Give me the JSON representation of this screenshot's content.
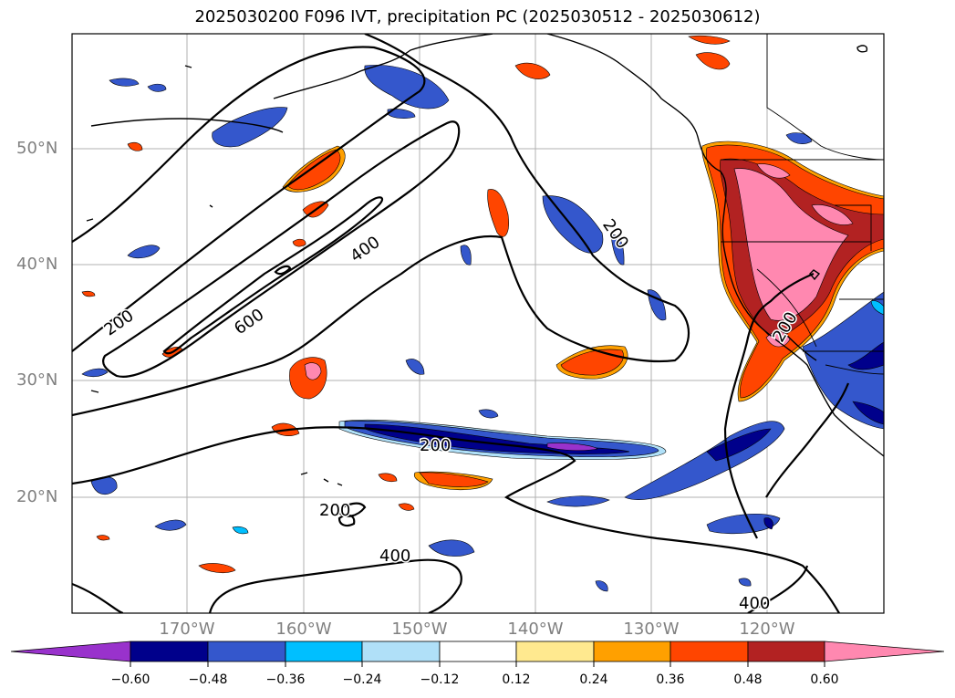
{
  "title": "2025030200 F096 IVT, precipitation PC (2025030512 - 2025030612)",
  "lat_labels": [
    "50°N",
    "40°N",
    "30°N",
    "20°N"
  ],
  "lon_labels": [
    "170°W",
    "160°W",
    "150°W",
    "140°W",
    "130°W",
    "120°W"
  ],
  "contour_labels": [
    "200",
    "600",
    "400",
    "200",
    "200",
    "200",
    "200",
    "400",
    "400"
  ],
  "colorbar": {
    "ticks": [
      "−0.60",
      "−0.48",
      "−0.36",
      "−0.24",
      "−0.12",
      "0.12",
      "0.24",
      "0.36",
      "0.48",
      "0.60"
    ],
    "colors": [
      "#9932cc",
      "#00008b",
      "#3457cc",
      "#00bfff",
      "#b0e0f8",
      "#ffffff",
      "#ffe98f",
      "#ffa000",
      "#ff4500",
      "#b22222",
      "#ff88b0"
    ]
  },
  "colors": {
    "neg_low": "#b0e0f8",
    "neg_mid": "#00bfff",
    "neg_hi": "#3457cc",
    "neg_max": "#00008b",
    "neg_ext": "#9932cc",
    "pos_low": "#ffe98f",
    "pos_mid": "#ffa000",
    "pos_hi": "#ff4500",
    "pos_max": "#b22222",
    "pos_ext": "#ff88b0",
    "grid": "#b0b0b0",
    "label": "#808080"
  }
}
